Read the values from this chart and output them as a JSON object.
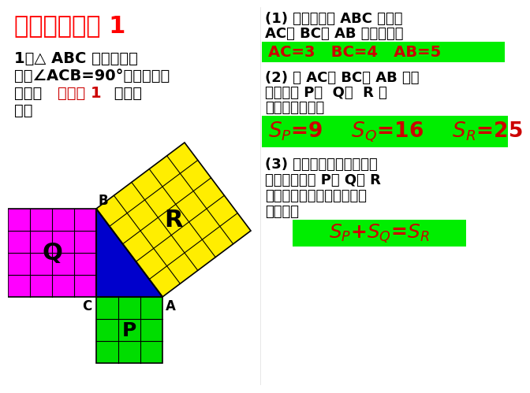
{
  "bg_color": "#ffffff",
  "title": "自学成果展示 1",
  "title_color": "#ff0000",
  "left_line1": "1、△ ABC 是直角三角",
  "left_line2": "形，∠ACB=90°，每个小方",
  "left_line3_black1": "格都是",
  "left_line3_red": "边长为 1",
  "left_line3_black2": " 的正方",
  "left_line4": "形．",
  "right_q1_line1": "(1) 直角三角形 ABC 的三边",
  "right_q1_line2": "AC、 BC、 AB 各是多少？",
  "right_ans1": "AC=3   BC=4   AB=5",
  "right_q2_line1": "(2) 以 AC、 BC、 AB 为边",
  "right_q2_line2": "的正方形 P、  Q、  R 的",
  "right_q2_line3": "面积各是多少？",
  "right_ans2_1": "S",
  "right_ans2_2": "P",
  "right_ans2_3": "=9    S",
  "right_ans2_4": "Q",
  "right_ans2_5": "=16    S",
  "right_ans2_6": "R",
  "right_ans2_7": "=25",
  "right_q3_line1": "(3) 观察所得到的数据，你",
  "right_q3_line2": "能发现正方形 P、 Q、 R",
  "right_q3_line3": "的面积之间具有怎样的等量",
  "right_q3_line4": "关系呢？",
  "right_ans3": "S_P+S_Q=S_R",
  "green_bg": "#00ee00",
  "ans_text_color": "#cc0000",
  "magenta_color": "#ff00ff",
  "yellow_color": "#ffee00",
  "green_sq_color": "#00dd00",
  "blue_color": "#0000cc",
  "grid_line_color": "#222222",
  "vertex_label_color": "#000000",
  "sq_label_color": "#000000"
}
